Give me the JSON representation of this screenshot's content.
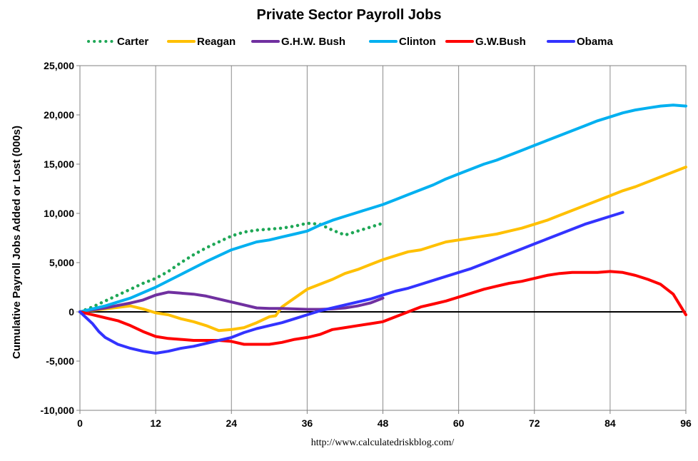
{
  "chart_data": {
    "type": "line",
    "title": "Private Sector Payroll Jobs",
    "xlabel": "",
    "ylabel": "Cumulative Payroll Jobs Added or  Lost (000s)",
    "source": "http://www.calculatedriskblog.com/",
    "xlim": [
      0,
      96
    ],
    "ylim": [
      -10000,
      25000
    ],
    "x_ticks": [
      0,
      12,
      24,
      36,
      48,
      60,
      72,
      84,
      96
    ],
    "x_tick_labels": [
      "0",
      "12",
      "24",
      "36",
      "48",
      "60",
      "72",
      "84",
      "96"
    ],
    "y_ticks": [
      -10000,
      -5000,
      0,
      5000,
      10000,
      15000,
      20000,
      25000
    ],
    "y_tick_labels": [
      "-10,000",
      "-5,000",
      "0",
      "5,000",
      "10,000",
      "15,000",
      "20,000",
      "25,000"
    ],
    "grid": "vertical",
    "legend_position": "top",
    "series": [
      {
        "name": "Carter",
        "color": "#1ea756",
        "style": "dotted",
        "x": [
          0,
          2,
          4,
          6,
          8,
          10,
          12,
          14,
          16,
          18,
          20,
          22,
          24,
          26,
          28,
          30,
          32,
          34,
          36,
          38,
          40,
          42,
          44,
          46,
          48
        ],
        "y": [
          0,
          500,
          1100,
          1700,
          2300,
          2900,
          3400,
          4100,
          5000,
          5800,
          6500,
          7100,
          7700,
          8100,
          8300,
          8400,
          8500,
          8700,
          9000,
          8900,
          8300,
          7800,
          8200,
          8600,
          9000
        ]
      },
      {
        "name": "Reagan",
        "color": "#ffc000",
        "style": "solid",
        "x": [
          0,
          4,
          8,
          10,
          12,
          14,
          16,
          18,
          20,
          22,
          24,
          26,
          28,
          30,
          31,
          32,
          34,
          36,
          38,
          40,
          42,
          44,
          46,
          48,
          50,
          52,
          54,
          56,
          58,
          60,
          62,
          64,
          66,
          68,
          70,
          72,
          74,
          76,
          78,
          80,
          82,
          84,
          86,
          88,
          90,
          92,
          94,
          96
        ],
        "y": [
          0,
          300,
          600,
          300,
          -100,
          -300,
          -700,
          -1000,
          -1400,
          -1900,
          -1800,
          -1600,
          -1100,
          -500,
          -400,
          500,
          1400,
          2300,
          2800,
          3300,
          3900,
          4300,
          4800,
          5300,
          5700,
          6100,
          6300,
          6700,
          7100,
          7300,
          7500,
          7700,
          7900,
          8200,
          8500,
          8900,
          9300,
          9800,
          10300,
          10800,
          11300,
          11800,
          12300,
          12700,
          13200,
          13700,
          14200,
          14700
        ]
      },
      {
        "name": "G.H.W. Bush",
        "color": "#7030a0",
        "style": "solid",
        "x": [
          0,
          4,
          8,
          10,
          12,
          14,
          16,
          18,
          20,
          22,
          24,
          26,
          28,
          30,
          32,
          34,
          36,
          38,
          40,
          42,
          44,
          46,
          48
        ],
        "y": [
          0,
          400,
          900,
          1200,
          1700,
          2000,
          1900,
          1800,
          1600,
          1300,
          1000,
          700,
          400,
          350,
          350,
          300,
          250,
          250,
          300,
          400,
          600,
          900,
          1400
        ]
      },
      {
        "name": "Clinton",
        "color": "#00b0f0",
        "style": "solid",
        "x": [
          0,
          4,
          8,
          12,
          16,
          20,
          24,
          28,
          30,
          32,
          34,
          36,
          38,
          40,
          42,
          44,
          46,
          48,
          50,
          52,
          54,
          56,
          58,
          60,
          62,
          64,
          66,
          68,
          70,
          72,
          74,
          76,
          78,
          80,
          82,
          84,
          86,
          88,
          90,
          92,
          94,
          96
        ],
        "y": [
          0,
          600,
          1400,
          2500,
          3800,
          5100,
          6300,
          7100,
          7300,
          7600,
          7900,
          8200,
          8800,
          9300,
          9700,
          10100,
          10500,
          10900,
          11400,
          11900,
          12400,
          12900,
          13500,
          14000,
          14500,
          15000,
          15400,
          15900,
          16400,
          16900,
          17400,
          17900,
          18400,
          18900,
          19400,
          19800,
          20200,
          20500,
          20700,
          20900,
          21000,
          20900
        ]
      },
      {
        "name": "G.W.Bush",
        "color": "#ff0000",
        "style": "solid",
        "x": [
          0,
          2,
          4,
          6,
          8,
          10,
          12,
          14,
          16,
          18,
          20,
          22,
          24,
          26,
          28,
          30,
          32,
          34,
          36,
          38,
          40,
          42,
          44,
          46,
          48,
          50,
          52,
          54,
          56,
          58,
          60,
          62,
          64,
          66,
          68,
          70,
          72,
          74,
          76,
          78,
          80,
          82,
          84,
          86,
          88,
          90,
          92,
          94,
          96
        ],
        "y": [
          0,
          -300,
          -600,
          -900,
          -1400,
          -2000,
          -2500,
          -2700,
          -2800,
          -2900,
          -2900,
          -2900,
          -3000,
          -3300,
          -3300,
          -3300,
          -3100,
          -2800,
          -2600,
          -2300,
          -1800,
          -1600,
          -1400,
          -1200,
          -1000,
          -500,
          0,
          500,
          800,
          1100,
          1500,
          1900,
          2300,
          2600,
          2900,
          3100,
          3400,
          3700,
          3900,
          4000,
          4000,
          4000,
          4100,
          4000,
          3700,
          3300,
          2800,
          1800,
          -300
        ]
      },
      {
        "name": "Obama",
        "color": "#3333ff",
        "style": "solid",
        "x": [
          0,
          2,
          3,
          4,
          6,
          8,
          10,
          12,
          14,
          16,
          18,
          20,
          22,
          24,
          26,
          28,
          30,
          32,
          34,
          36,
          38,
          40,
          42,
          44,
          46,
          48,
          50,
          52,
          54,
          56,
          58,
          60,
          62,
          64,
          66,
          68,
          70,
          72,
          74,
          76,
          78,
          80,
          82,
          84,
          86
        ],
        "y": [
          0,
          -1200,
          -2000,
          -2600,
          -3300,
          -3700,
          -4000,
          -4200,
          -4000,
          -3700,
          -3500,
          -3200,
          -2900,
          -2600,
          -2100,
          -1700,
          -1400,
          -1100,
          -700,
          -300,
          100,
          400,
          700,
          1000,
          1300,
          1700,
          2100,
          2400,
          2800,
          3200,
          3600,
          4000,
          4400,
          4900,
          5400,
          5900,
          6400,
          6900,
          7400,
          7900,
          8400,
          8900,
          9300,
          9700,
          10100
        ]
      }
    ]
  }
}
